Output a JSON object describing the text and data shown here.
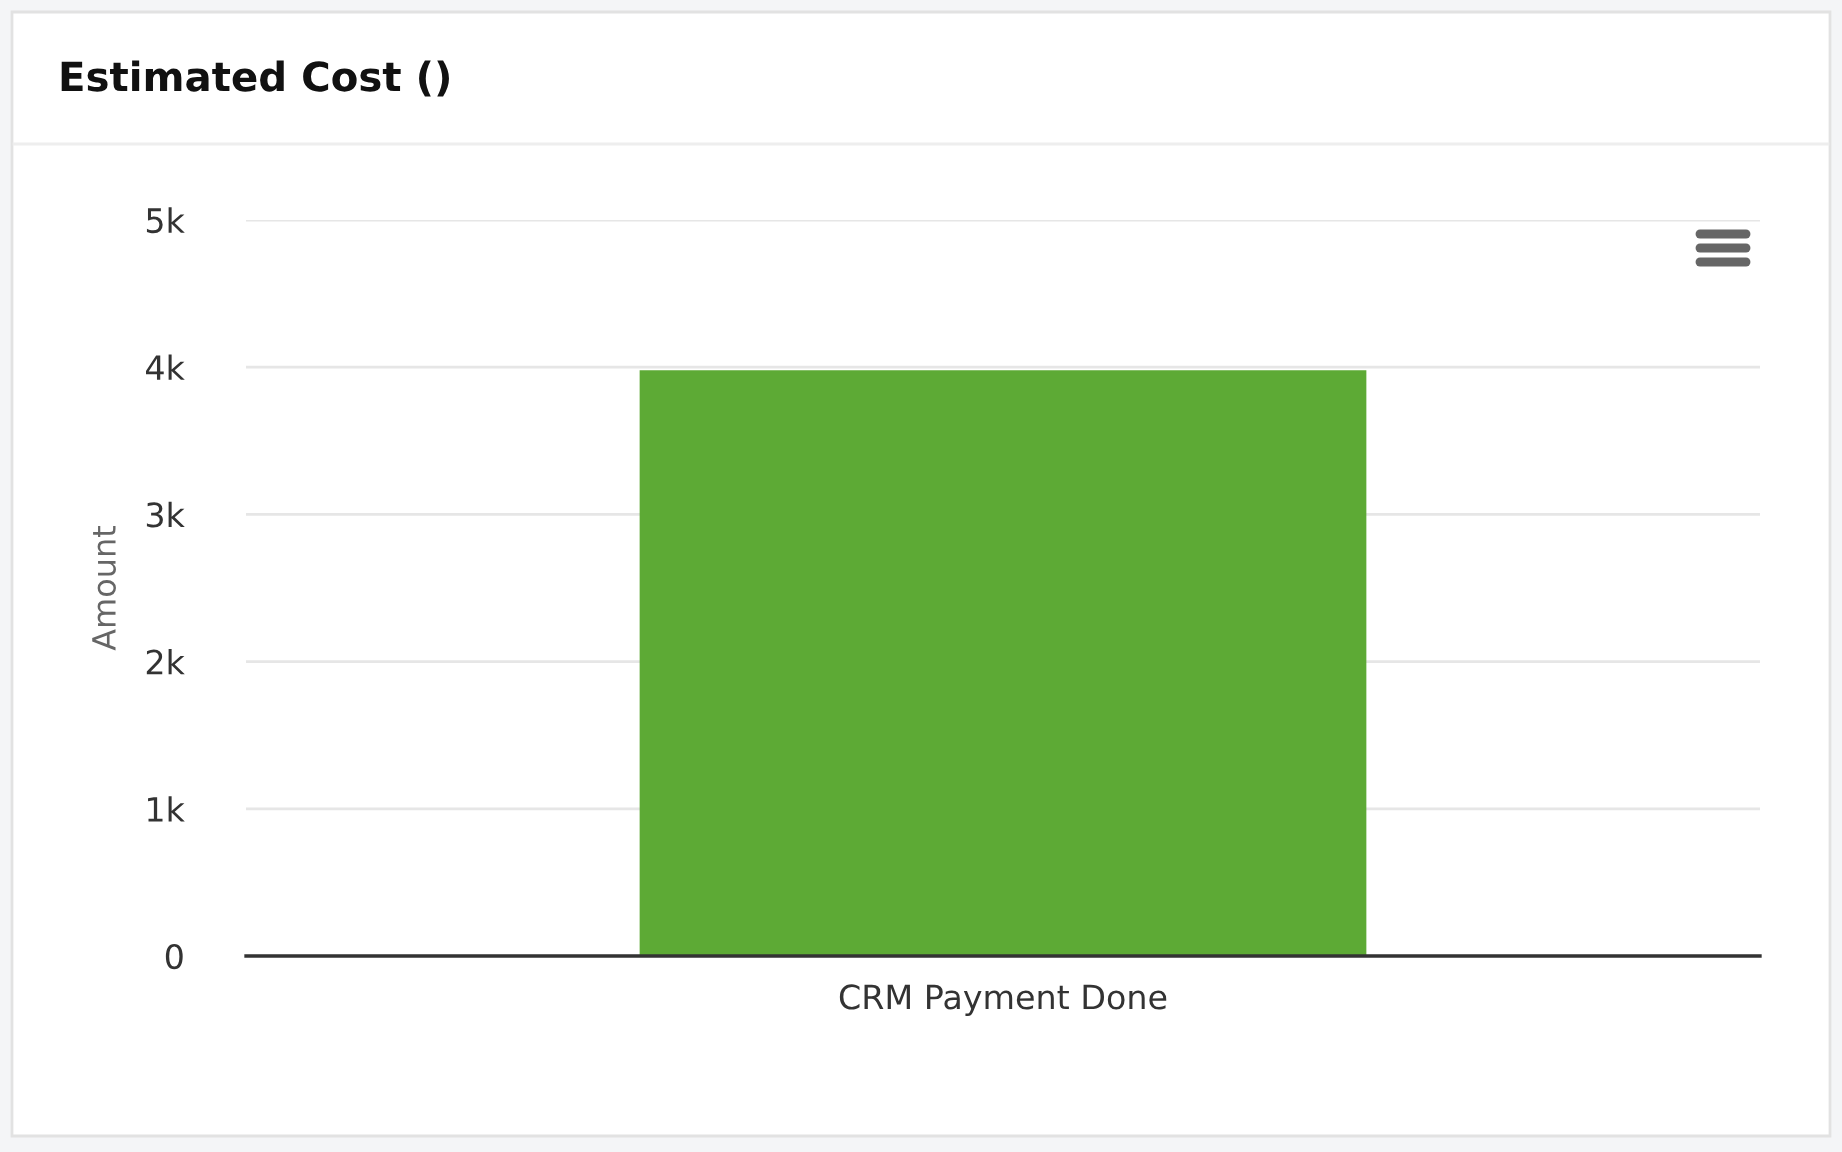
{
  "chart_data": {
    "type": "bar",
    "title": "Estimated Cost ()",
    "ylabel": "Amount",
    "categories": [
      "CRM Payment Done"
    ],
    "values": [
      3980
    ],
    "color": "#5daa35",
    "ylim": [
      0,
      5000
    ],
    "yticks": [
      0,
      {
        "value": 1000,
        "label": "1k"
      },
      {
        "value": 2000,
        "label": "2k"
      },
      {
        "value": 3000,
        "label": "3k"
      },
      {
        "value": 4000,
        "label": "4k"
      },
      {
        "value": 5000,
        "label": "5k"
      }
    ],
    "grid": "y"
  }
}
